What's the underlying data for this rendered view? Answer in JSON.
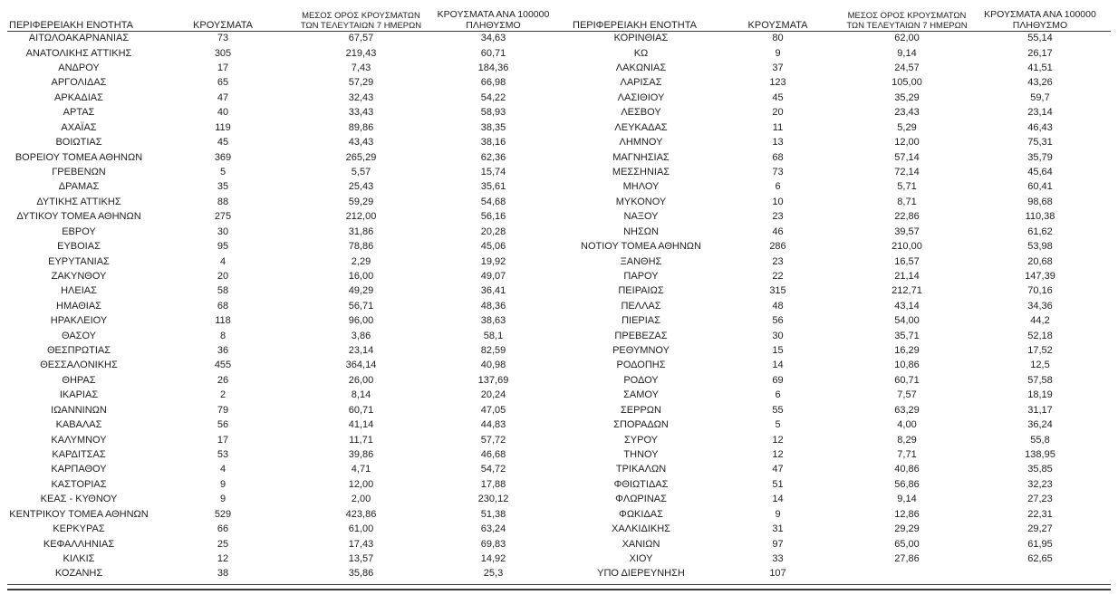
{
  "page": {
    "background": "#ffffff",
    "text_color": "#1f1f1f",
    "rule_color": "#3a3a3a"
  },
  "headers": {
    "region": "ΠΕΡΙΦΕΡΕΙΑΚΗ ΕΝΟΤΗΤΑ",
    "cases": "ΚΡΟΥΣΜΑΤΑ",
    "avg7_line1": "ΜΕΣΟΣ ΟΡΟΣ ΚΡΟΥΣΜΑΤΩΝ",
    "avg7_line2": "ΤΩΝ ΤΕΛΕΥΤΑΙΩΝ 7 ΗΜΕΡΩΝ",
    "per100k_line1": "ΚΡΟΥΣΜΑΤΑ ΑΝΑ 100000",
    "per100k_line2": "ΠΛΗΘΥΣΜΟ"
  },
  "columns": [
    "region",
    "cases",
    "avg7",
    "per100k"
  ],
  "left_table": {
    "rows": [
      [
        "ΑΙΤΩΛΟΑΚΑΡΝΑΝΙΑΣ",
        "73",
        "67,57",
        "34,63"
      ],
      [
        "ΑΝΑΤΟΛΙΚΗΣ ΑΤΤΙΚΗΣ",
        "305",
        "219,43",
        "60,71"
      ],
      [
        "ΑΝΔΡΟΥ",
        "17",
        "7,43",
        "184,36"
      ],
      [
        "ΑΡΓΟΛΙΔΑΣ",
        "65",
        "57,29",
        "66,98"
      ],
      [
        "ΑΡΚΑΔΙΑΣ",
        "47",
        "32,43",
        "54,22"
      ],
      [
        "ΑΡΤΑΣ",
        "40",
        "33,43",
        "58,93"
      ],
      [
        "ΑΧΑΪΑΣ",
        "119",
        "89,86",
        "38,35"
      ],
      [
        "ΒΟΙΩΤΙΑΣ",
        "45",
        "43,43",
        "38,16"
      ],
      [
        "ΒΟΡΕΙΟΥ ΤΟΜΕΑ ΑΘΗΝΩΝ",
        "369",
        "265,29",
        "62,36"
      ],
      [
        "ΓΡΕΒΕΝΩΝ",
        "5",
        "5,57",
        "15,74"
      ],
      [
        "ΔΡΑΜΑΣ",
        "35",
        "25,43",
        "35,61"
      ],
      [
        "ΔΥΤΙΚΗΣ ΑΤΤΙΚΗΣ",
        "88",
        "59,29",
        "54,68"
      ],
      [
        "ΔΥΤΙΚΟΥ ΤΟΜΕΑ ΑΘΗΝΩΝ",
        "275",
        "212,00",
        "56,16"
      ],
      [
        "ΕΒΡΟΥ",
        "30",
        "31,86",
        "20,28"
      ],
      [
        "ΕΥΒΟΙΑΣ",
        "95",
        "78,86",
        "45,06"
      ],
      [
        "ΕΥΡΥΤΑΝΙΑΣ",
        "4",
        "2,29",
        "19,92"
      ],
      [
        "ΖΑΚΥΝΘΟΥ",
        "20",
        "16,00",
        "49,07"
      ],
      [
        "ΗΛΕΙΑΣ",
        "58",
        "49,29",
        "36,41"
      ],
      [
        "ΗΜΑΘΙΑΣ",
        "68",
        "56,71",
        "48,36"
      ],
      [
        "ΗΡΑΚΛΕΙΟΥ",
        "118",
        "96,00",
        "38,63"
      ],
      [
        "ΘΑΣΟΥ",
        "8",
        "3,86",
        "58,1"
      ],
      [
        "ΘΕΣΠΡΩΤΙΑΣ",
        "36",
        "23,14",
        "82,59"
      ],
      [
        "ΘΕΣΣΑΛΟΝΙΚΗΣ",
        "455",
        "364,14",
        "40,98"
      ],
      [
        "ΘΗΡΑΣ",
        "26",
        "26,00",
        "137,69"
      ],
      [
        "ΙΚΑΡΙΑΣ",
        "2",
        "8,14",
        "20,24"
      ],
      [
        "ΙΩΑΝΝΙΝΩΝ",
        "79",
        "60,71",
        "47,05"
      ],
      [
        "ΚΑΒΑΛΑΣ",
        "56",
        "41,14",
        "44,83"
      ],
      [
        "ΚΑΛΥΜΝΟΥ",
        "17",
        "11,71",
        "57,72"
      ],
      [
        "ΚΑΡΔΙΤΣΑΣ",
        "53",
        "39,86",
        "46,68"
      ],
      [
        "ΚΑΡΠΑΘΟΥ",
        "4",
        "4,71",
        "54,72"
      ],
      [
        "ΚΑΣΤΟΡΙΑΣ",
        "9",
        "12,00",
        "17,88"
      ],
      [
        "ΚΕΑΣ - ΚΥΘΝΟΥ",
        "9",
        "2,00",
        "230,12"
      ],
      [
        "ΚΕΝΤΡΙΚΟΥ ΤΟΜΕΑ ΑΘΗΝΩΝ",
        "529",
        "423,86",
        "51,38"
      ],
      [
        "ΚΕΡΚΥΡΑΣ",
        "66",
        "61,00",
        "63,24"
      ],
      [
        "ΚΕΦΑΛΛΗΝΙΑΣ",
        "25",
        "17,43",
        "69,83"
      ],
      [
        "ΚΙΛΚΙΣ",
        "12",
        "13,57",
        "14,92"
      ],
      [
        "ΚΟΖΑΝΗΣ",
        "38",
        "35,86",
        "25,3"
      ]
    ]
  },
  "right_table": {
    "rows": [
      [
        "ΚΟΡΙΝΘΙΑΣ",
        "80",
        "62,00",
        "55,14"
      ],
      [
        "ΚΩ",
        "9",
        "9,14",
        "26,17"
      ],
      [
        "ΛΑΚΩΝΙΑΣ",
        "37",
        "24,57",
        "41,51"
      ],
      [
        "ΛΑΡΙΣΑΣ",
        "123",
        "105,00",
        "43,26"
      ],
      [
        "ΛΑΣΙΘΙΟΥ",
        "45",
        "35,29",
        "59,7"
      ],
      [
        "ΛΕΣΒΟΥ",
        "20",
        "23,43",
        "23,14"
      ],
      [
        "ΛΕΥΚΑΔΑΣ",
        "11",
        "5,29",
        "46,43"
      ],
      [
        "ΛΗΜΝΟΥ",
        "13",
        "12,00",
        "75,31"
      ],
      [
        "ΜΑΓΝΗΣΙΑΣ",
        "68",
        "57,14",
        "35,79"
      ],
      [
        "ΜΕΣΣΗΝΙΑΣ",
        "73",
        "72,14",
        "45,64"
      ],
      [
        "ΜΗΛΟΥ",
        "6",
        "5,71",
        "60,41"
      ],
      [
        "ΜΥΚΟΝΟΥ",
        "10",
        "8,71",
        "98,68"
      ],
      [
        "ΝΑΞΟΥ",
        "23",
        "22,86",
        "110,38"
      ],
      [
        "ΝΗΣΩΝ",
        "46",
        "39,57",
        "61,62"
      ],
      [
        "ΝΟΤΙΟΥ ΤΟΜΕΑ ΑΘΗΝΩΝ",
        "286",
        "210,00",
        "53,98"
      ],
      [
        "ΞΑΝΘΗΣ",
        "23",
        "16,57",
        "20,68"
      ],
      [
        "ΠΑΡΟΥ",
        "22",
        "21,14",
        "147,39"
      ],
      [
        "ΠΕΙΡΑΙΩΣ",
        "315",
        "212,71",
        "70,16"
      ],
      [
        "ΠΕΛΛΑΣ",
        "48",
        "43,14",
        "34,36"
      ],
      [
        "ΠΙΕΡΙΑΣ",
        "56",
        "54,00",
        "44,2"
      ],
      [
        "ΠΡΕΒΕΖΑΣ",
        "30",
        "35,71",
        "52,18"
      ],
      [
        "ΡΕΘΥΜΝΟΥ",
        "15",
        "16,29",
        "17,52"
      ],
      [
        "ΡΟΔΟΠΗΣ",
        "14",
        "10,86",
        "12,5"
      ],
      [
        "ΡΟΔΟΥ",
        "69",
        "60,71",
        "57,58"
      ],
      [
        "ΣΑΜΟΥ",
        "6",
        "7,57",
        "18,19"
      ],
      [
        "ΣΕΡΡΩΝ",
        "55",
        "63,29",
        "31,17"
      ],
      [
        "ΣΠΟΡΑΔΩΝ",
        "5",
        "4,00",
        "36,24"
      ],
      [
        "ΣΥΡΟΥ",
        "12",
        "8,29",
        "55,8"
      ],
      [
        "ΤΗΝΟΥ",
        "12",
        "7,71",
        "138,95"
      ],
      [
        "ΤΡΙΚΑΛΩΝ",
        "47",
        "40,86",
        "35,85"
      ],
      [
        "ΦΘΙΩΤΙΔΑΣ",
        "51",
        "56,86",
        "32,23"
      ],
      [
        "ΦΛΩΡΙΝΑΣ",
        "14",
        "9,14",
        "27,23"
      ],
      [
        "ΦΩΚΙΔΑΣ",
        "9",
        "12,86",
        "22,31"
      ],
      [
        "ΧΑΛΚΙΔΙΚΗΣ",
        "31",
        "29,29",
        "29,27"
      ],
      [
        "ΧΑΝΙΩΝ",
        "97",
        "65,00",
        "61,95"
      ],
      [
        "ΧΙΟΥ",
        "33",
        "27,86",
        "62,65"
      ],
      [
        "ΥΠΟ ΔΙΕΡΕΥΝΗΣΗ",
        "107",
        "",
        ""
      ]
    ]
  }
}
